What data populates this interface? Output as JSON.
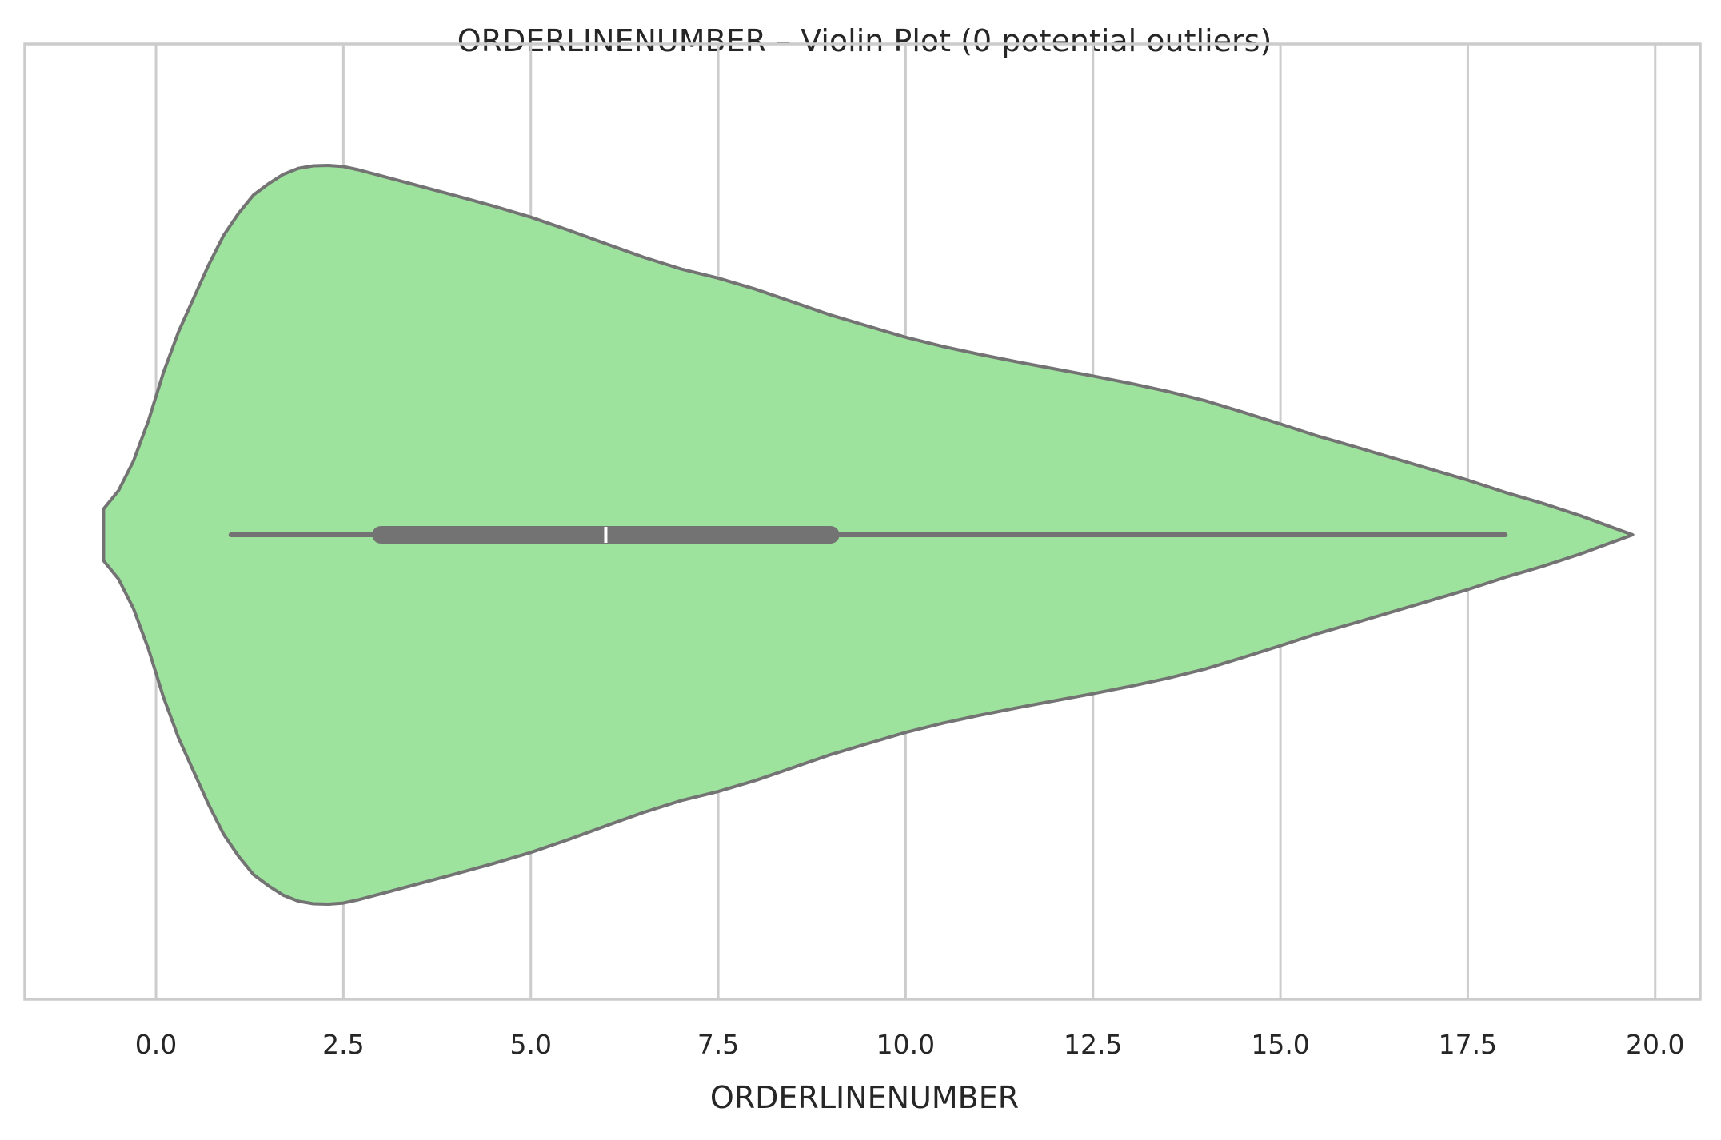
{
  "chart_data": {
    "type": "violin",
    "orientation": "horizontal",
    "title": "ORDERLINENUMBER – Violin Plot (0 potential outliers)",
    "xlabel": "ORDERLINENUMBER",
    "ylabel": "",
    "xlim": [
      -1.75,
      20.6
    ],
    "xticks": [
      0.0,
      2.5,
      5.0,
      7.5,
      10.0,
      12.5,
      15.0,
      17.5,
      20.0
    ],
    "xtick_labels": [
      "0.0",
      "2.5",
      "5.0",
      "7.5",
      "10.0",
      "12.5",
      "15.0",
      "17.5",
      "20.0"
    ],
    "grid": {
      "x": true,
      "y": false
    },
    "legend": "none",
    "series": [
      {
        "box": {
          "whisker_low": 1,
          "q1": 3,
          "median": 6,
          "q3": 9,
          "whisker_high": 18
        },
        "density": {
          "x": [
            -0.7,
            -0.5,
            -0.3,
            -0.1,
            0.1,
            0.3,
            0.5,
            0.7,
            0.9,
            1.1,
            1.3,
            1.5,
            1.7,
            1.9,
            2.1,
            2.3,
            2.5,
            2.7,
            3.0,
            3.5,
            4.0,
            4.5,
            5.0,
            5.5,
            6.0,
            6.5,
            7.0,
            7.5,
            8.0,
            8.5,
            9.0,
            9.5,
            10.0,
            10.5,
            11.0,
            11.5,
            12.0,
            12.5,
            13.0,
            13.5,
            14.0,
            14.5,
            15.0,
            15.5,
            16.0,
            16.5,
            17.0,
            17.5,
            18.0,
            18.5,
            19.0,
            19.4,
            19.7
          ],
          "y": [
            0.07,
            0.12,
            0.2,
            0.31,
            0.44,
            0.55,
            0.64,
            0.73,
            0.81,
            0.87,
            0.92,
            0.95,
            0.976,
            0.992,
            0.999,
            1.0,
            0.997,
            0.988,
            0.972,
            0.945,
            0.918,
            0.89,
            0.86,
            0.825,
            0.788,
            0.752,
            0.72,
            0.695,
            0.665,
            0.63,
            0.595,
            0.565,
            0.535,
            0.51,
            0.488,
            0.468,
            0.449,
            0.43,
            0.41,
            0.388,
            0.363,
            0.332,
            0.3,
            0.267,
            0.238,
            0.208,
            0.178,
            0.148,
            0.115,
            0.085,
            0.052,
            0.022,
            0.0
          ]
        }
      }
    ],
    "colors": {
      "violin_fill": "#9de29d",
      "violin_edge": "#737373",
      "box": "#737373",
      "median": "#ffffff",
      "grid": "#cccccc",
      "frame": "#cccccc",
      "text": "#262626"
    }
  }
}
